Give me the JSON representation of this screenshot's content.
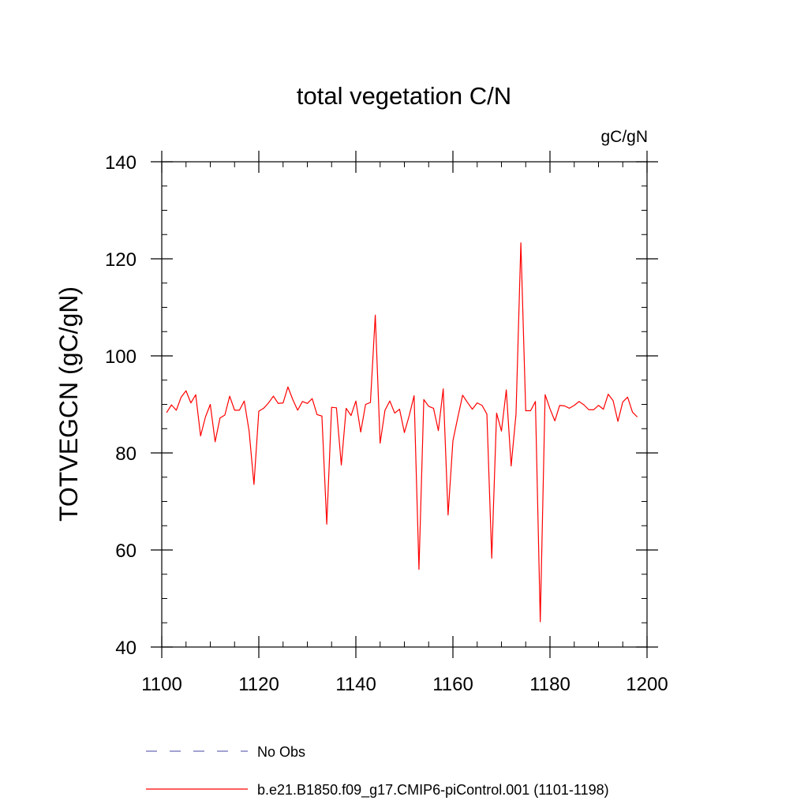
{
  "chart_data": {
    "type": "line",
    "title": "total vegetation C/N",
    "units_label": "gC/gN",
    "xlabel": "",
    "ylabel": "TOTVEGCN  (gC/gN)",
    "xlim": [
      1100,
      1200
    ],
    "ylim": [
      40,
      140
    ],
    "xticks": [
      1100,
      1120,
      1140,
      1160,
      1180,
      1200
    ],
    "yticks": [
      40,
      60,
      80,
      100,
      120,
      140
    ],
    "x_minor_step": 5,
    "y_minor_step": 5,
    "grid": false,
    "legend_position": "bottom",
    "series": [
      {
        "name": "No Obs",
        "style": "dashed",
        "color": "#6a6ab8",
        "x": [],
        "values": []
      },
      {
        "name": "b.e21.B1850.f09_g17.CMIP6-piControl.001 (1101-1198)",
        "style": "solid",
        "color": "#ff0000",
        "x_start": 1101,
        "x_step": 1,
        "values": [
          88.3,
          89.9,
          88.8,
          91.5,
          92.8,
          90.3,
          92.0,
          83.5,
          87.4,
          90.0,
          82.3,
          87.2,
          87.8,
          91.7,
          88.8,
          88.8,
          90.7,
          84.5,
          73.5,
          88.6,
          89.2,
          90.3,
          91.7,
          90.2,
          90.3,
          93.6,
          91.0,
          88.8,
          90.6,
          90.2,
          91.2,
          87.9,
          87.6,
          65.3,
          89.4,
          89.3,
          77.5,
          89.2,
          87.7,
          90.7,
          84.3,
          90.0,
          90.4,
          108.4,
          82.0,
          88.8,
          90.7,
          88.2,
          89.0,
          84.2,
          87.7,
          91.8,
          56.0,
          91.0,
          89.6,
          89.2,
          84.6,
          93.2,
          67.2,
          82.5,
          87.3,
          91.9,
          90.4,
          89.0,
          90.3,
          89.8,
          88.0,
          58.3,
          88.2,
          84.5,
          93.0,
          77.3,
          88.0,
          123.3,
          88.7,
          88.7,
          90.6,
          45.2,
          92.0,
          89.1,
          86.6,
          89.8,
          89.7,
          89.2,
          89.8,
          90.6,
          89.9,
          88.9,
          88.9,
          89.8,
          89.0,
          92.1,
          90.8,
          86.5,
          90.5,
          91.5,
          88.4,
          87.4
        ]
      }
    ]
  }
}
